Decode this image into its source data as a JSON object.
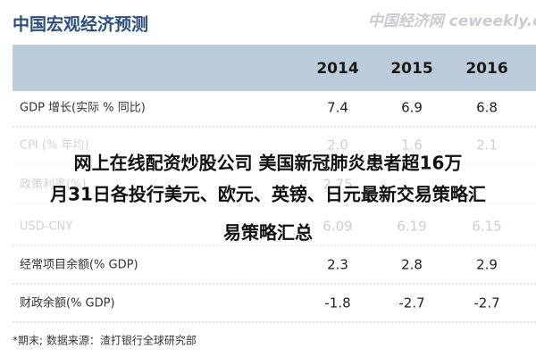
{
  "header": {
    "title": "中国宏观经济预测",
    "watermark": "中国经济网 ceweekly.cn"
  },
  "table": {
    "columns": [
      "2014",
      "2015",
      "2016"
    ],
    "rows": [
      {
        "label": "GDP 增长(实际 % 同比)",
        "values": [
          "7.4",
          "6.9",
          "6.8"
        ]
      },
      {
        "label": "CPI (% 年均)",
        "values": [
          "2.0",
          "1.6",
          "2.1"
        ]
      },
      {
        "label": "政策利率(%)",
        "values": [
          "2.75",
          null,
          null
        ]
      },
      {
        "label": "USD-CNY",
        "values": [
          "6.09",
          "6.19",
          "6.15"
        ]
      },
      {
        "label": "经常项目余额(% GDP)",
        "values": [
          "2.3",
          "2.8",
          "2.9"
        ]
      },
      {
        "label": "财政余额(% GDP)",
        "values": [
          "-1.8",
          "-2.7",
          "-2.7"
        ]
      }
    ],
    "footnote": "*期末;    数据来源：渣打银行全球研究部"
  },
  "overlay": {
    "lines": [
      "网上在线配资炒股公司 美国新冠肺炎患者超16万",
      "月31日各投行美元、欧元、英镑、日元最新交易策略汇",
      "易策略汇总"
    ]
  }
}
